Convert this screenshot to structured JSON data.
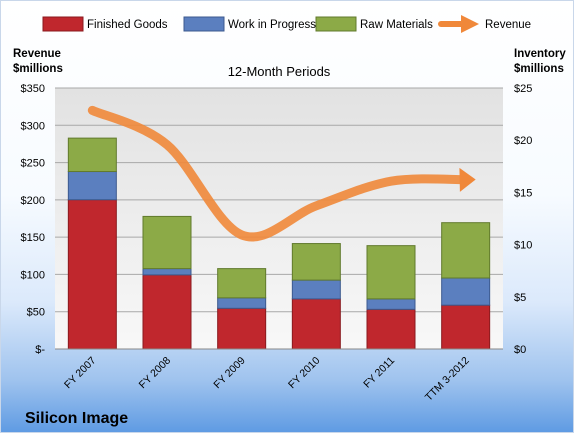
{
  "chart_data": {
    "type": "bar",
    "stacked": true,
    "subtitle": "12-Month Periods",
    "company": "Silicon Image",
    "left_axis_title_line1": "Revenue",
    "left_axis_title_line2": "$millions",
    "right_axis_title_line1": "Inventory",
    "right_axis_title_line2": "$millions",
    "categories": [
      "FY 2007",
      "FY 2008",
      "FY 2009",
      "FY 2010",
      "FY 2011",
      "TTM 3-2012"
    ],
    "ylim_left": [
      0,
      350
    ],
    "ylim_right": [
      0,
      25
    ],
    "left_ticks": [
      "$-",
      "$50",
      "$100",
      "$150",
      "$200",
      "$250",
      "$300",
      "$350"
    ],
    "right_ticks": [
      "$0",
      "$5",
      "$10",
      "$15",
      "$20",
      "$25"
    ],
    "legend_position": "top",
    "grid": true,
    "series": [
      {
        "name": "Finished Goods",
        "axis": "right",
        "color": "#c0272d",
        "values": [
          14.3,
          7.1,
          3.9,
          4.8,
          3.8,
          4.2
        ]
      },
      {
        "name": "Work in Progress",
        "axis": "right",
        "color": "#5b7fbf",
        "values": [
          2.7,
          0.6,
          1.0,
          1.8,
          1.0,
          2.6
        ]
      },
      {
        "name": "Raw Materials",
        "axis": "right",
        "color": "#8caa47",
        "values": [
          3.2,
          5.0,
          2.8,
          3.5,
          5.1,
          5.3
        ]
      },
      {
        "name": "Revenue",
        "axis": "left",
        "type": "line",
        "color": "#f0883a",
        "values": [
          320,
          274,
          153,
          192,
          225,
          227
        ]
      }
    ]
  }
}
